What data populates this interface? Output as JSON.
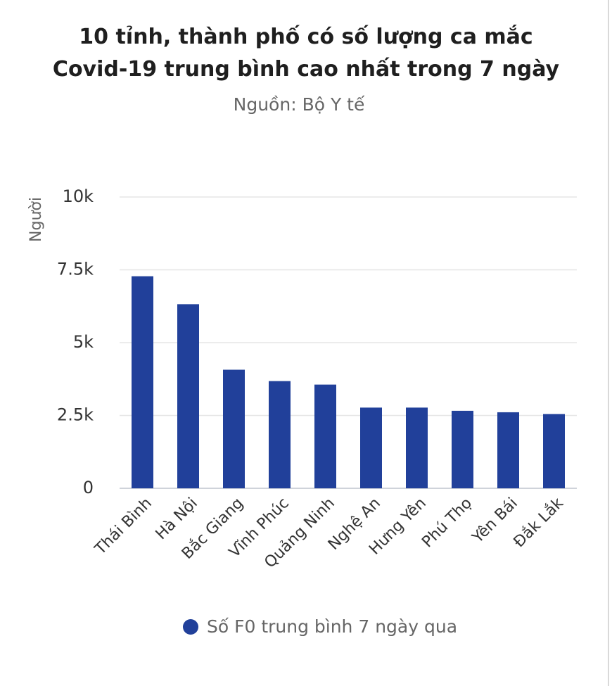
{
  "chart_data": {
    "type": "bar",
    "title_lines": [
      "10 tỉnh, thành phố có số lượng ca mắc",
      "Covid-19 trung bình cao nhất trong 7 ngày"
    ],
    "subtitle": "Nguồn: Bộ Y tế",
    "ylabel": "Người",
    "ylim": [
      0,
      10000
    ],
    "yticks": [
      {
        "value": 0,
        "label": "0"
      },
      {
        "value": 2500,
        "label": "2.5k"
      },
      {
        "value": 5000,
        "label": "5k"
      },
      {
        "value": 7500,
        "label": "7.5k"
      },
      {
        "value": 10000,
        "label": "10k"
      }
    ],
    "grid": true,
    "legend_position": "bottom",
    "categories": [
      "Thái Bình",
      "Hà Nội",
      "Bắc Giang",
      "Vĩnh Phúc",
      "Quảng Ninh",
      "Nghệ An",
      "Hưng Yên",
      "Phú Thọ",
      "Yên Bái",
      "Đắk Lắk"
    ],
    "series": [
      {
        "name": "Số F0 trung bình 7 ngày qua",
        "color": "#21409a",
        "values": [
          7280,
          6320,
          4070,
          3680,
          3560,
          2770,
          2770,
          2660,
          2610,
          2550
        ]
      }
    ]
  }
}
